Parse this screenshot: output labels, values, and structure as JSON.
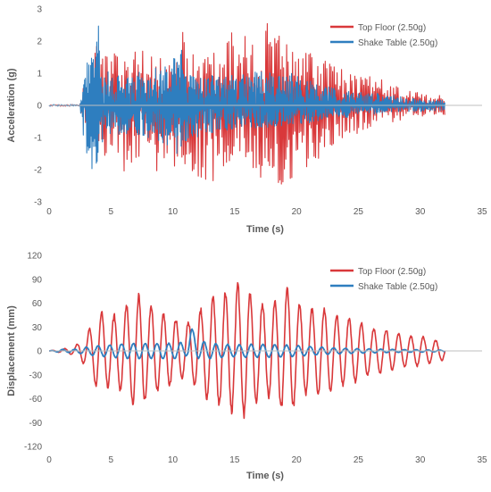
{
  "colors": {
    "top_floor": "#d9383a",
    "shake_table": "#2e7ebf"
  },
  "chart_data": [
    {
      "type": "line",
      "xlabel": "Time (s)",
      "ylabel": "Acceleration (g)",
      "xlim": [
        0,
        35
      ],
      "ylim": [
        -3,
        3
      ],
      "xticks": [
        0,
        5,
        10,
        15,
        20,
        25,
        30,
        35
      ],
      "yticks": [
        -3,
        -2,
        -1,
        0,
        1,
        2,
        3
      ],
      "legend": "top-right",
      "grid": false,
      "series": [
        {
          "name": "Top Floor (2.50g)",
          "color": "#d9383a",
          "x": [
            0,
            2.5,
            3.0,
            3.5,
            4.0,
            4.5,
            5.0,
            6.0,
            7.0,
            7.5,
            8.0,
            9.0,
            10.0,
            10.5,
            11.0,
            12.0,
            13.0,
            14.0,
            15.0,
            16.0,
            17.0,
            17.5,
            18.0,
            19.0,
            20.0,
            21.0,
            22.0,
            23.0,
            24.0,
            25.0,
            26.0,
            27.0,
            28.0,
            29.0,
            30.0,
            31.0,
            32.0
          ],
          "y": [
            0,
            0.1,
            1.2,
            1.5,
            2.6,
            1.5,
            1.7,
            1.4,
            2.2,
            1.8,
            1.5,
            1.6,
            1.9,
            2.2,
            2.5,
            1.4,
            1.9,
            1.6,
            2.5,
            2.1,
            2.6,
            2.8,
            2.1,
            2.3,
            1.8,
            1.9,
            1.6,
            1.3,
            1.1,
            1.0,
            0.9,
            0.8,
            0.6,
            0.5,
            0.4,
            0.35,
            0.3
          ],
          "envelope_neg": [
            0,
            -0.1,
            -1.2,
            -1.3,
            -1.8,
            -1.7,
            -1.6,
            -2.1,
            -2.4,
            -2.0,
            -1.7,
            -2.3,
            -1.9,
            -2.0,
            -2.1,
            -2.3,
            -2.6,
            -2.2,
            -2.3,
            -2.1,
            -2.4,
            -2.2,
            -2.3,
            -2.5,
            -2.1,
            -1.9,
            -1.7,
            -1.4,
            -1.1,
            -0.9,
            -0.8,
            -0.7,
            -0.5,
            -0.4,
            -0.35,
            -0.3,
            -0.3
          ]
        },
        {
          "name": "Shake Table (2.50g)",
          "color": "#2e7ebf",
          "x": [
            0,
            2.5,
            3.0,
            3.5,
            4.0,
            4.5,
            5.0,
            6.0,
            7.0,
            8.0,
            9.0,
            10.0,
            10.5,
            11.0,
            12.0,
            14.0,
            16.0,
            18.0,
            20.0,
            22.0,
            24.0,
            26.0,
            28.0,
            30.0,
            32.0
          ],
          "y": [
            0,
            0.1,
            1.3,
            1.6,
            2.5,
            1.1,
            1.0,
            1.0,
            1.0,
            1.2,
            1.2,
            1.5,
            2.5,
            1.0,
            1.0,
            0.9,
            1.1,
            1.0,
            1.0,
            0.6,
            0.5,
            0.4,
            0.3,
            0.2,
            0.15
          ],
          "envelope_neg": [
            0,
            -0.1,
            -1.7,
            -2.1,
            -1.8,
            -0.9,
            -1.0,
            -1.0,
            -1.0,
            -1.0,
            -1.2,
            -1.4,
            -1.8,
            -1.4,
            -1.0,
            -0.8,
            -0.7,
            -0.7,
            -0.6,
            -0.5,
            -0.4,
            -0.3,
            -0.2,
            -0.2,
            -0.15
          ]
        }
      ]
    },
    {
      "type": "line",
      "xlabel": "Time (s)",
      "ylabel": "Displacement (mm)",
      "xlim": [
        0,
        35
      ],
      "ylim": [
        -120,
        120
      ],
      "xticks": [
        0,
        5,
        10,
        15,
        20,
        25,
        30,
        35
      ],
      "yticks": [
        -120,
        -90,
        -60,
        -30,
        0,
        30,
        60,
        90,
        120
      ],
      "legend": "top-right",
      "grid": false,
      "series": [
        {
          "name": "Top Floor (2.50g)",
          "color": "#d9383a",
          "x": [
            0,
            2.0,
            3.0,
            4.0,
            5.0,
            6.0,
            7.0,
            7.5,
            8.0,
            9.0,
            10.0,
            11.0,
            12.0,
            13.0,
            14.0,
            15.0,
            15.5,
            16.0,
            17.0,
            18.0,
            19.0,
            19.5,
            20.0,
            21.0,
            22.0,
            23.0,
            24.0,
            25.0,
            26.0,
            27.0,
            28.0,
            29.0,
            30.0,
            31.0,
            32.0
          ],
          "amplitude": [
            0,
            5,
            20,
            55,
            45,
            55,
            75,
            70,
            65,
            50,
            45,
            35,
            50,
            70,
            75,
            85,
            90,
            80,
            65,
            60,
            85,
            85,
            65,
            55,
            60,
            50,
            45,
            40,
            30,
            30,
            25,
            20,
            20,
            15,
            12
          ]
        },
        {
          "name": "Shake Table (2.50g)",
          "color": "#2e7ebf",
          "x": [
            0,
            1.0,
            2.0,
            3.0,
            4.0,
            5.0,
            6.0,
            8.0,
            10.0,
            11.0,
            11.5,
            12.0,
            13.0,
            15.0,
            17.0,
            19.0,
            21.0,
            23.0,
            25.0,
            28.0,
            32.0
          ],
          "amplitude": [
            0,
            2,
            2,
            5,
            7,
            8,
            10,
            10,
            10,
            12,
            20,
            15,
            10,
            8,
            9,
            8,
            6,
            4,
            3,
            2,
            1
          ]
        }
      ]
    }
  ]
}
